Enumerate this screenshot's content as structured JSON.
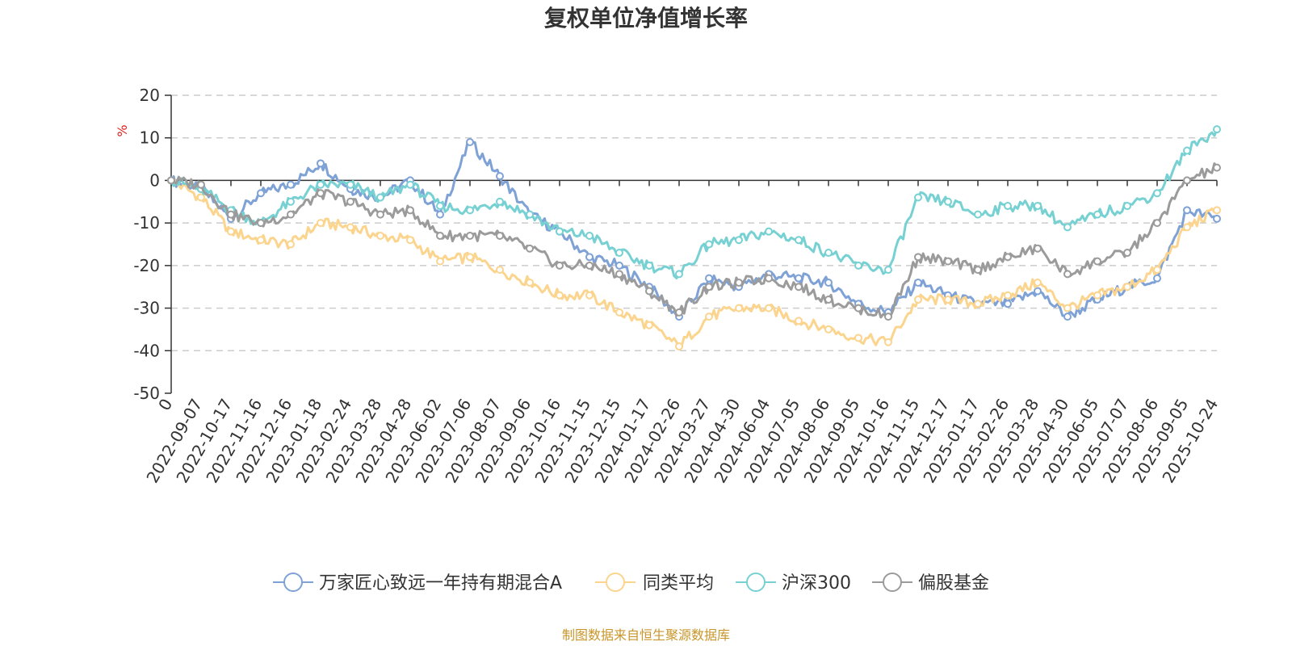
{
  "chart_data": {
    "type": "line",
    "title": "复权单位净值增长率",
    "ylabel": "%",
    "ylim": [
      -50,
      20
    ],
    "yticks": [
      20,
      10,
      0,
      -10,
      -20,
      -30,
      -40,
      -50
    ],
    "grid": true,
    "legend_position": "bottom",
    "source": "制图数据来自恒生聚源数据库",
    "categories": [
      "0",
      "2022-09-07",
      "2022-10-17",
      "2022-11-16",
      "2022-12-16",
      "2023-01-18",
      "2023-02-24",
      "2023-03-28",
      "2023-04-28",
      "2023-06-02",
      "2023-07-06",
      "2023-08-07",
      "2023-09-06",
      "2023-10-16",
      "2023-11-15",
      "2023-12-15",
      "2024-01-17",
      "2024-02-26",
      "2024-03-27",
      "2024-04-30",
      "2024-06-04",
      "2024-07-05",
      "2024-08-06",
      "2024-09-05",
      "2024-10-16",
      "2024-11-15",
      "2024-12-17",
      "2025-01-17",
      "2025-02-26",
      "2025-03-28",
      "2025-04-30",
      "2025-06-05",
      "2025-07-07",
      "2025-08-06",
      "2025-09-05",
      "2025-10-24"
    ],
    "series": [
      {
        "name": "万家匠心致远一年持有期混合A",
        "color": "#7fa2d6",
        "values": [
          0,
          -2,
          -9,
          -3,
          -1,
          4,
          -2,
          -4,
          0,
          -8,
          9,
          1,
          -8,
          -12,
          -18,
          -20,
          -25,
          -32,
          -23,
          -25,
          -22,
          -23,
          -24,
          -29,
          -31,
          -24,
          -27,
          -29,
          -29,
          -26,
          -32,
          -28,
          -25,
          -23,
          -7,
          -9
        ]
      },
      {
        "name": "同类平均",
        "color": "#fbd48e",
        "values": [
          0,
          -4,
          -12,
          -14,
          -15,
          -10,
          -11,
          -13,
          -14,
          -19,
          -18,
          -21,
          -24,
          -27,
          -27,
          -31,
          -34,
          -39,
          -32,
          -30,
          -30,
          -33,
          -35,
          -37,
          -38,
          -28,
          -28,
          -29,
          -27,
          -24,
          -30,
          -27,
          -25,
          -21,
          -11,
          -7
        ]
      },
      {
        "name": "沪深300",
        "color": "#77d1d3",
        "values": [
          0,
          -2,
          -7,
          -10,
          -5,
          -1,
          -1,
          -4,
          -1,
          -6,
          -7,
          -5,
          -8,
          -12,
          -13,
          -17,
          -20,
          -22,
          -15,
          -14,
          -12,
          -14,
          -17,
          -20,
          -21,
          -4,
          -5,
          -8,
          -6,
          -6,
          -11,
          -8,
          -6,
          -3,
          7,
          12
        ]
      },
      {
        "name": "偏股基金",
        "color": "#9b9b9b",
        "values": [
          0,
          -1,
          -8,
          -10,
          -8,
          -3,
          -5,
          -8,
          -7,
          -13,
          -13,
          -13,
          -16,
          -20,
          -20,
          -22,
          -26,
          -31,
          -25,
          -24,
          -23,
          -25,
          -28,
          -30,
          -32,
          -18,
          -19,
          -21,
          -18,
          -16,
          -22,
          -19,
          -17,
          -10,
          0,
          3
        ]
      }
    ]
  }
}
